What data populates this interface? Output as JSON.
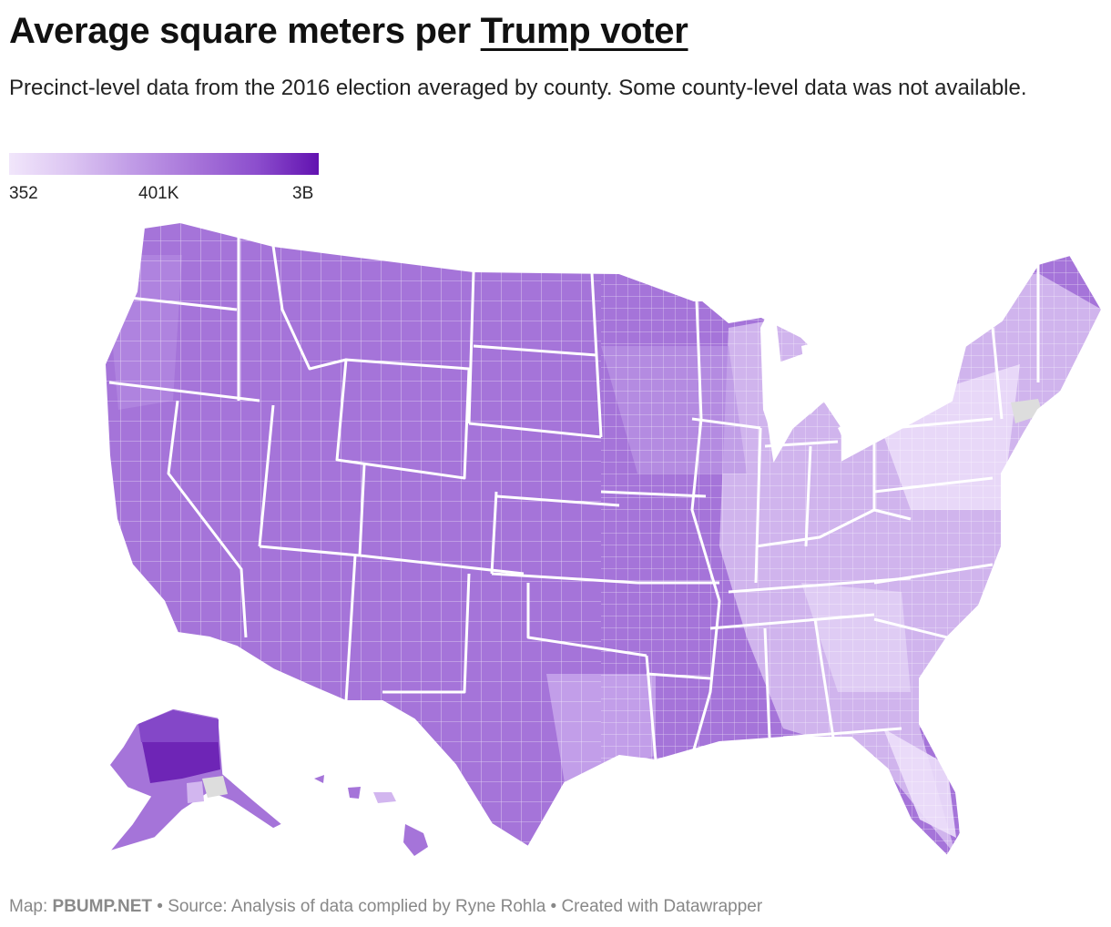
{
  "title": {
    "prefix": "Average square meters per ",
    "link": "Trump voter"
  },
  "subtitle": "Precinct-level data from the 2016 election averaged by county. Some county-level data was not available.",
  "legend": {
    "ticks": [
      "352",
      "401K",
      "3B"
    ],
    "colors": [
      "#f1e6fb",
      "#dcc5f2",
      "#c09be6",
      "#a774d9",
      "#8c4ecd",
      "#6212b0"
    ],
    "no_data_color": "#dddddd"
  },
  "map": {
    "region": "United States counties",
    "base_color": "#a06ed6",
    "urban_color": "#e8d8f7"
  },
  "footer": {
    "map_label": "Map:",
    "brand": "PBUMP.NET",
    "source": "• Source: Analysis of data complied by Ryne Rohla • Created with Datawrapper"
  }
}
